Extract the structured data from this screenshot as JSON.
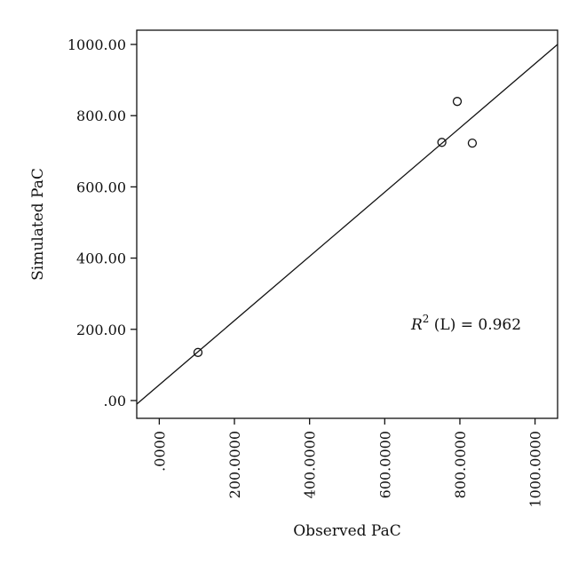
{
  "chart_data": {
    "type": "scatter",
    "xlabel": "Observed PaC",
    "ylabel": "Simulated PaC",
    "xlim": [
      -60,
      1060
    ],
    "ylim": [
      -50,
      1040
    ],
    "x_ticks": [
      {
        "value": 0,
        "label": ".0000"
      },
      {
        "value": 200,
        "label": "200.0000"
      },
      {
        "value": 400,
        "label": "400.0000"
      },
      {
        "value": 600,
        "label": "600.0000"
      },
      {
        "value": 800,
        "label": "800.0000"
      },
      {
        "value": 1000,
        "label": "1000.0000"
      }
    ],
    "y_ticks": [
      {
        "value": 0,
        "label": ".00"
      },
      {
        "value": 200,
        "label": "200.00"
      },
      {
        "value": 400,
        "label": "400.00"
      },
      {
        "value": 600,
        "label": "600.00"
      },
      {
        "value": 800,
        "label": "800.00"
      },
      {
        "value": 1000,
        "label": "1000.00"
      }
    ],
    "points": [
      {
        "x": 103,
        "y": 135
      },
      {
        "x": 752,
        "y": 725
      },
      {
        "x": 793,
        "y": 840
      },
      {
        "x": 833,
        "y": 723
      }
    ],
    "fit_line": {
      "x": [
        -60,
        1060
      ],
      "y": [
        -10,
        1000
      ]
    },
    "annotation": {
      "r_symbol": "R",
      "superscript": "2",
      "rest": " (L) = 0.962",
      "x": 670,
      "y": 200
    },
    "grid": false,
    "legend": "none",
    "marker": "hollow-circle",
    "colors": {
      "axis": "#111111",
      "line": "#111111",
      "marker": "#111111"
    }
  }
}
